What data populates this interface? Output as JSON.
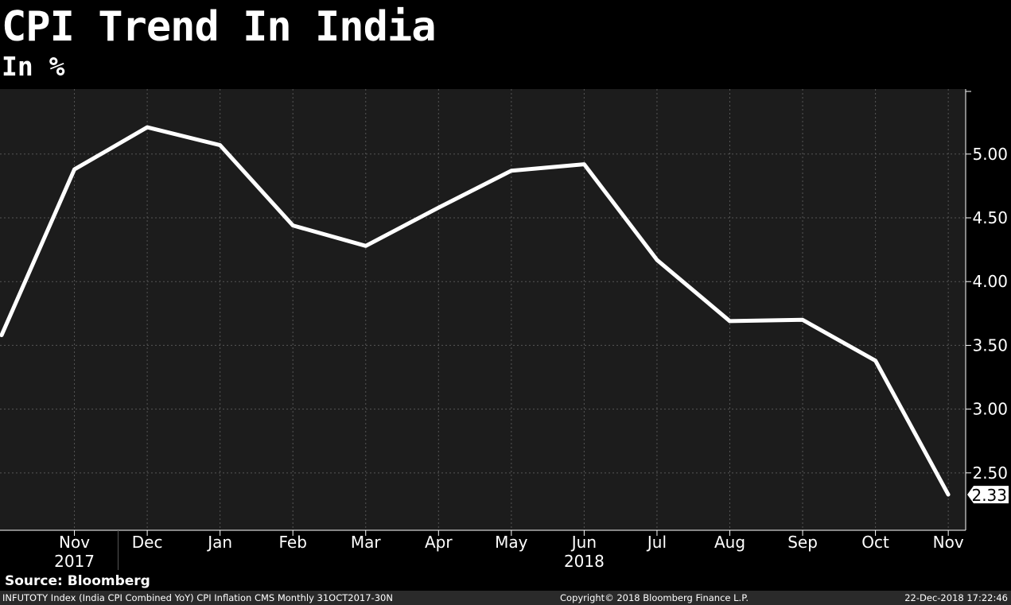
{
  "chart_data": {
    "type": "line",
    "title": "CPI Trend In India",
    "subtitle": "In %",
    "x": [
      "2017-10",
      "2017-11",
      "2017-12",
      "2018-01",
      "2018-02",
      "2018-03",
      "2018-04",
      "2018-05",
      "2018-06",
      "2018-07",
      "2018-08",
      "2018-09",
      "2018-10",
      "2018-11"
    ],
    "x_tick_labels": [
      "Nov",
      "Dec",
      "Jan",
      "Feb",
      "Mar",
      "Apr",
      "May",
      "Jun",
      "Jul",
      "Aug",
      "Sep",
      "Oct",
      "Nov"
    ],
    "year_labels": [
      {
        "text": "2017",
        "under": "Nov"
      },
      {
        "text": "2018",
        "under": "Jun"
      }
    ],
    "series": [
      {
        "values": [
          3.58,
          4.88,
          5.21,
          5.07,
          4.44,
          4.28,
          4.58,
          4.87,
          4.92,
          4.17,
          3.69,
          3.7,
          3.38,
          2.33
        ]
      }
    ],
    "y_ticks": [
      "2.50",
      "3.00",
      "3.50",
      "4.00",
      "4.50",
      "5.00"
    ],
    "ylim": [
      2.05,
      5.51
    ],
    "last_value_label": "2.33",
    "y_axis_side": "right",
    "grid": true,
    "colors": {
      "background": "#000000",
      "plot_background": "#1c1c1c",
      "line": "#ffffff",
      "grid": "#555555",
      "footer_background": "#2a2a2a"
    }
  },
  "source": "Source: Bloomberg",
  "footer": {
    "left": "INFUTOTY Index (India CPI Combined YoY) CPI Inflation CMS  Monthly 31OCT2017-30N",
    "center": "Copyright© 2018 Bloomberg Finance L.P.",
    "right": "22-Dec-2018 17:22:46"
  }
}
